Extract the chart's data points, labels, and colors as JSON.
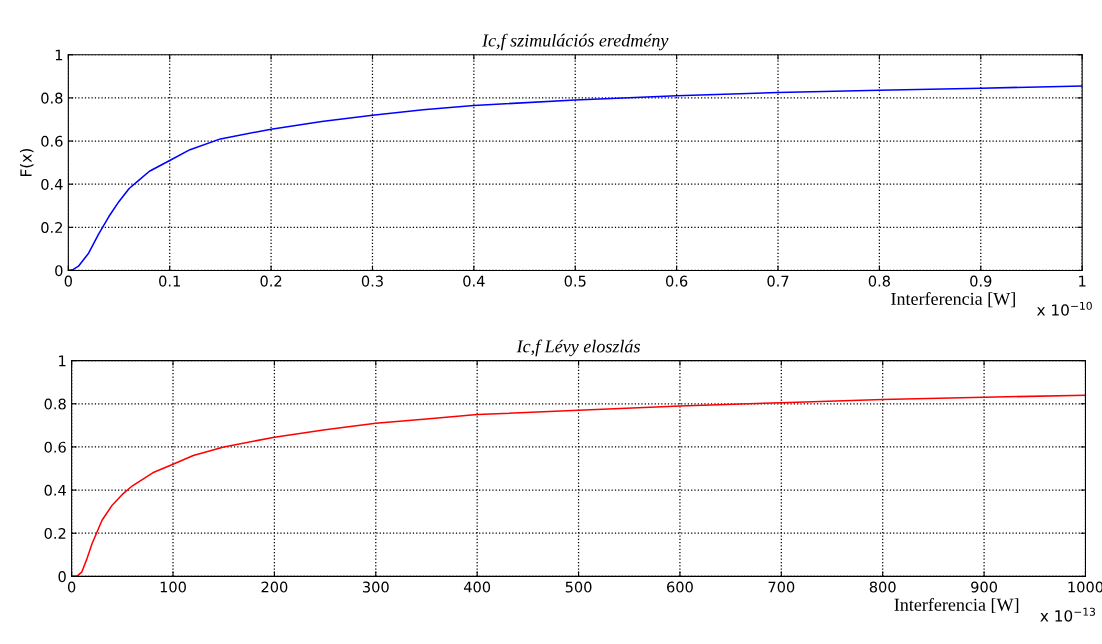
{
  "chart_data": [
    {
      "type": "line",
      "title": "Ic,f szimulációs eredmény",
      "xlabel": "Interferencia [W]",
      "ylabel": "F(x)",
      "annotations": [
        "x 10$^{−10}$"
      ],
      "x": [
        0,
        0.005,
        0.01,
        0.02,
        0.03,
        0.04,
        0.05,
        0.06,
        0.07,
        0.08,
        0.1,
        0.12,
        0.15,
        0.2,
        0.25,
        0.3,
        0.35,
        0.4,
        0.5,
        0.6,
        0.7,
        0.8,
        0.9,
        1.0
      ],
      "series": [
        {
          "color": "#0000ff",
          "values": [
            0,
            0.005,
            0.02,
            0.08,
            0.17,
            0.25,
            0.32,
            0.38,
            0.42,
            0.46,
            0.51,
            0.56,
            0.61,
            0.655,
            0.69,
            0.72,
            0.745,
            0.765,
            0.79,
            0.81,
            0.825,
            0.835,
            0.845,
            0.855
          ]
        }
      ],
      "xlim": [
        0,
        1
      ],
      "xticks": [
        0,
        0.1,
        0.2,
        0.3,
        0.4,
        0.5,
        0.6,
        0.7,
        0.8,
        0.9,
        1
      ],
      "ylim": [
        0,
        1
      ],
      "yticks": [
        0,
        0.2,
        0.4,
        0.6,
        0.8,
        1
      ],
      "grid": true
    },
    {
      "type": "line",
      "title": "Ic,f Lévy eloszlás",
      "xlabel": "Interferencia [W]",
      "annotations": [
        "x 10$^{−13}$"
      ],
      "x": [
        0,
        5,
        10,
        15,
        20,
        30,
        40,
        50,
        60,
        80,
        100,
        120,
        150,
        200,
        250,
        300,
        350,
        400,
        500,
        600,
        700,
        800,
        900,
        1000
      ],
      "series": [
        {
          "color": "#ff0000",
          "values": [
            0,
            0,
            0.02,
            0.08,
            0.15,
            0.26,
            0.33,
            0.38,
            0.42,
            0.48,
            0.52,
            0.56,
            0.6,
            0.645,
            0.68,
            0.71,
            0.73,
            0.75,
            0.77,
            0.79,
            0.805,
            0.82,
            0.83,
            0.84
          ]
        }
      ],
      "xlim": [
        0,
        1000
      ],
      "xticks": [
        0,
        100,
        200,
        300,
        400,
        500,
        600,
        700,
        800,
        900,
        1000
      ],
      "ylim": [
        0,
        1
      ],
      "yticks": [
        0,
        0.2,
        0.4,
        0.6,
        0.8,
        1
      ],
      "grid": true
    }
  ]
}
